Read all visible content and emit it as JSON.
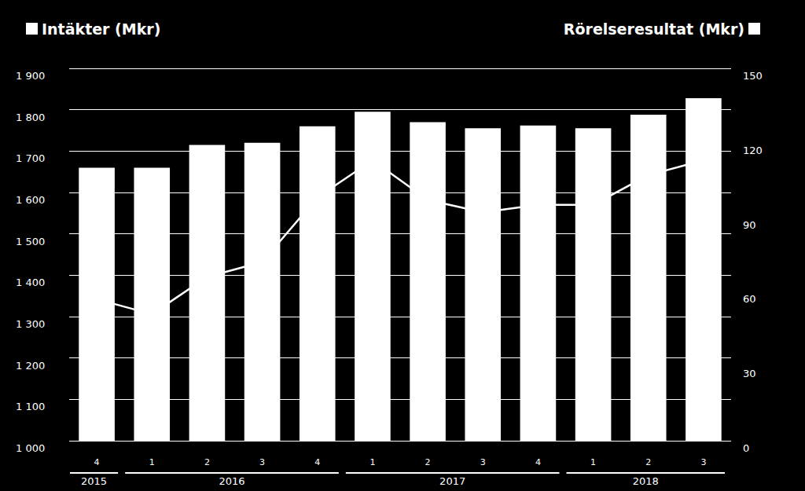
{
  "chart_data": {
    "type": "bar",
    "categories": [
      "4",
      "1",
      "2",
      "3",
      "4",
      "1",
      "2",
      "3",
      "4",
      "1",
      "2",
      "3"
    ],
    "years": [
      "2015",
      "2016",
      "2016",
      "2016",
      "2016",
      "2017",
      "2017",
      "2017",
      "2017",
      "2018",
      "2018",
      "2018"
    ],
    "series": [
      {
        "name": "Intäkter (Mkr)",
        "type": "bar",
        "color": "#ffffff",
        "values": [
          1660,
          1660,
          1715,
          1720,
          1760,
          1795,
          1770,
          1755,
          1762,
          1755,
          1788,
          1828
        ]
      },
      {
        "name": "Rörelseresultat (Mkr)",
        "type": "line",
        "axis": "y2",
        "color": "#ffffff",
        "values": [
          57,
          51,
          66,
          72,
          98,
          113,
          97,
          92,
          95,
          95,
          107,
          113
        ]
      }
    ],
    "ylim": [
      1000,
      1900
    ],
    "yticks": [
      {
        "value": 1000,
        "label": "1 000"
      },
      {
        "value": 1100,
        "label": "1 100"
      },
      {
        "value": 1200,
        "label": "1 200"
      },
      {
        "value": 1300,
        "label": "1 300"
      },
      {
        "value": 1400,
        "label": "1 400"
      },
      {
        "value": 1500,
        "label": "1 500"
      },
      {
        "value": 1600,
        "label": "1 600"
      },
      {
        "value": 1700,
        "label": "1 700"
      },
      {
        "value": 1800,
        "label": "1 800"
      },
      {
        "value": 1900,
        "label": "1 900"
      }
    ],
    "y2lim": [
      0,
      150
    ],
    "y2ticks": [
      0,
      30,
      60,
      90,
      120,
      150
    ],
    "grid": true,
    "legend": "top"
  }
}
